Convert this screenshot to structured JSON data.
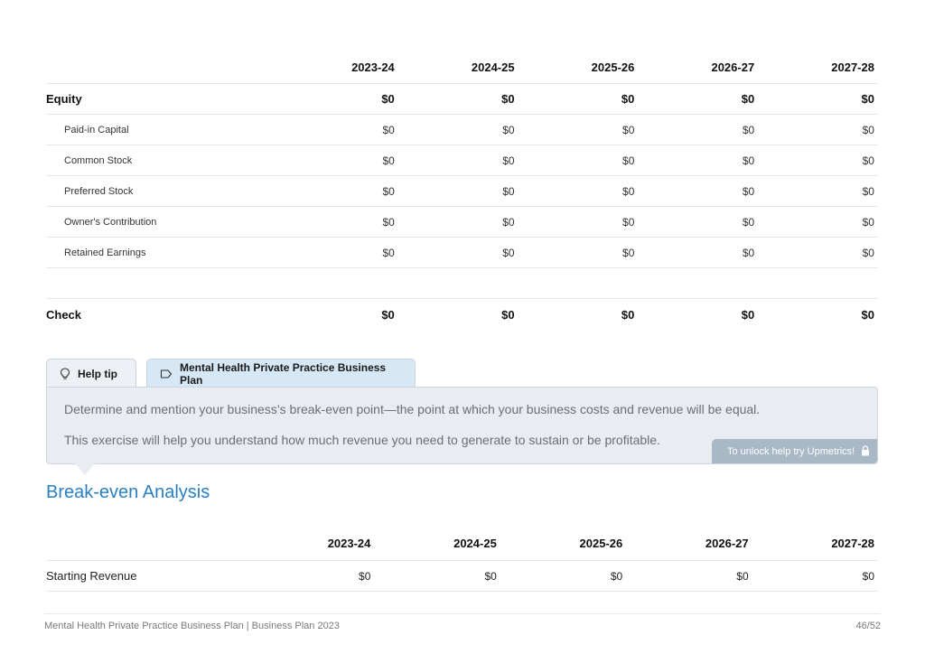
{
  "equity_table": {
    "years": [
      "2023-24",
      "2024-25",
      "2025-26",
      "2026-27",
      "2027-28"
    ],
    "equity": {
      "label": "Equity",
      "values": [
        "$0",
        "$0",
        "$0",
        "$0",
        "$0"
      ]
    },
    "sub_rows": [
      {
        "label": "Paid-in Capital",
        "values": [
          "$0",
          "$0",
          "$0",
          "$0",
          "$0"
        ]
      },
      {
        "label": "Common Stock",
        "values": [
          "$0",
          "$0",
          "$0",
          "$0",
          "$0"
        ]
      },
      {
        "label": "Preferred Stock",
        "values": [
          "$0",
          "$0",
          "$0",
          "$0",
          "$0"
        ]
      },
      {
        "label": "Owner's Contribution",
        "values": [
          "$0",
          "$0",
          "$0",
          "$0",
          "$0"
        ]
      },
      {
        "label": "Retained Earnings",
        "values": [
          "$0",
          "$0",
          "$0",
          "$0",
          "$0"
        ]
      }
    ],
    "check": {
      "label": "Check",
      "values": [
        "$0",
        "$0",
        "$0",
        "$0",
        "$0"
      ]
    }
  },
  "tabs": {
    "help_tip": "Help tip",
    "plan": "Mental Health Private Practice Business Plan"
  },
  "tip": {
    "line1": "Determine and mention your business’s break-even point—the point at which your business costs and revenue will be equal.",
    "line2": "This exercise will help you understand how much revenue you need to generate to sustain or be profitable.",
    "unlock": "To unlock help try Upmetrics!"
  },
  "section": {
    "title": "Break-even Analysis"
  },
  "breakeven_table": {
    "years": [
      "2023-24",
      "2024-25",
      "2025-26",
      "2026-27",
      "2027-28"
    ],
    "rows": [
      {
        "label": "Starting Revenue",
        "values": [
          "$0",
          "$0",
          "$0",
          "$0",
          "$0"
        ]
      }
    ]
  },
  "footer": {
    "left": "Mental Health Private Practice Business Plan | Business Plan 2023",
    "page": "46/52"
  },
  "colors": {
    "accent": "#2a7fc1",
    "tab_active": "#d6e7f5",
    "tip_bg": "#e9edf2",
    "unlock_bg": "#a8b8c6"
  }
}
